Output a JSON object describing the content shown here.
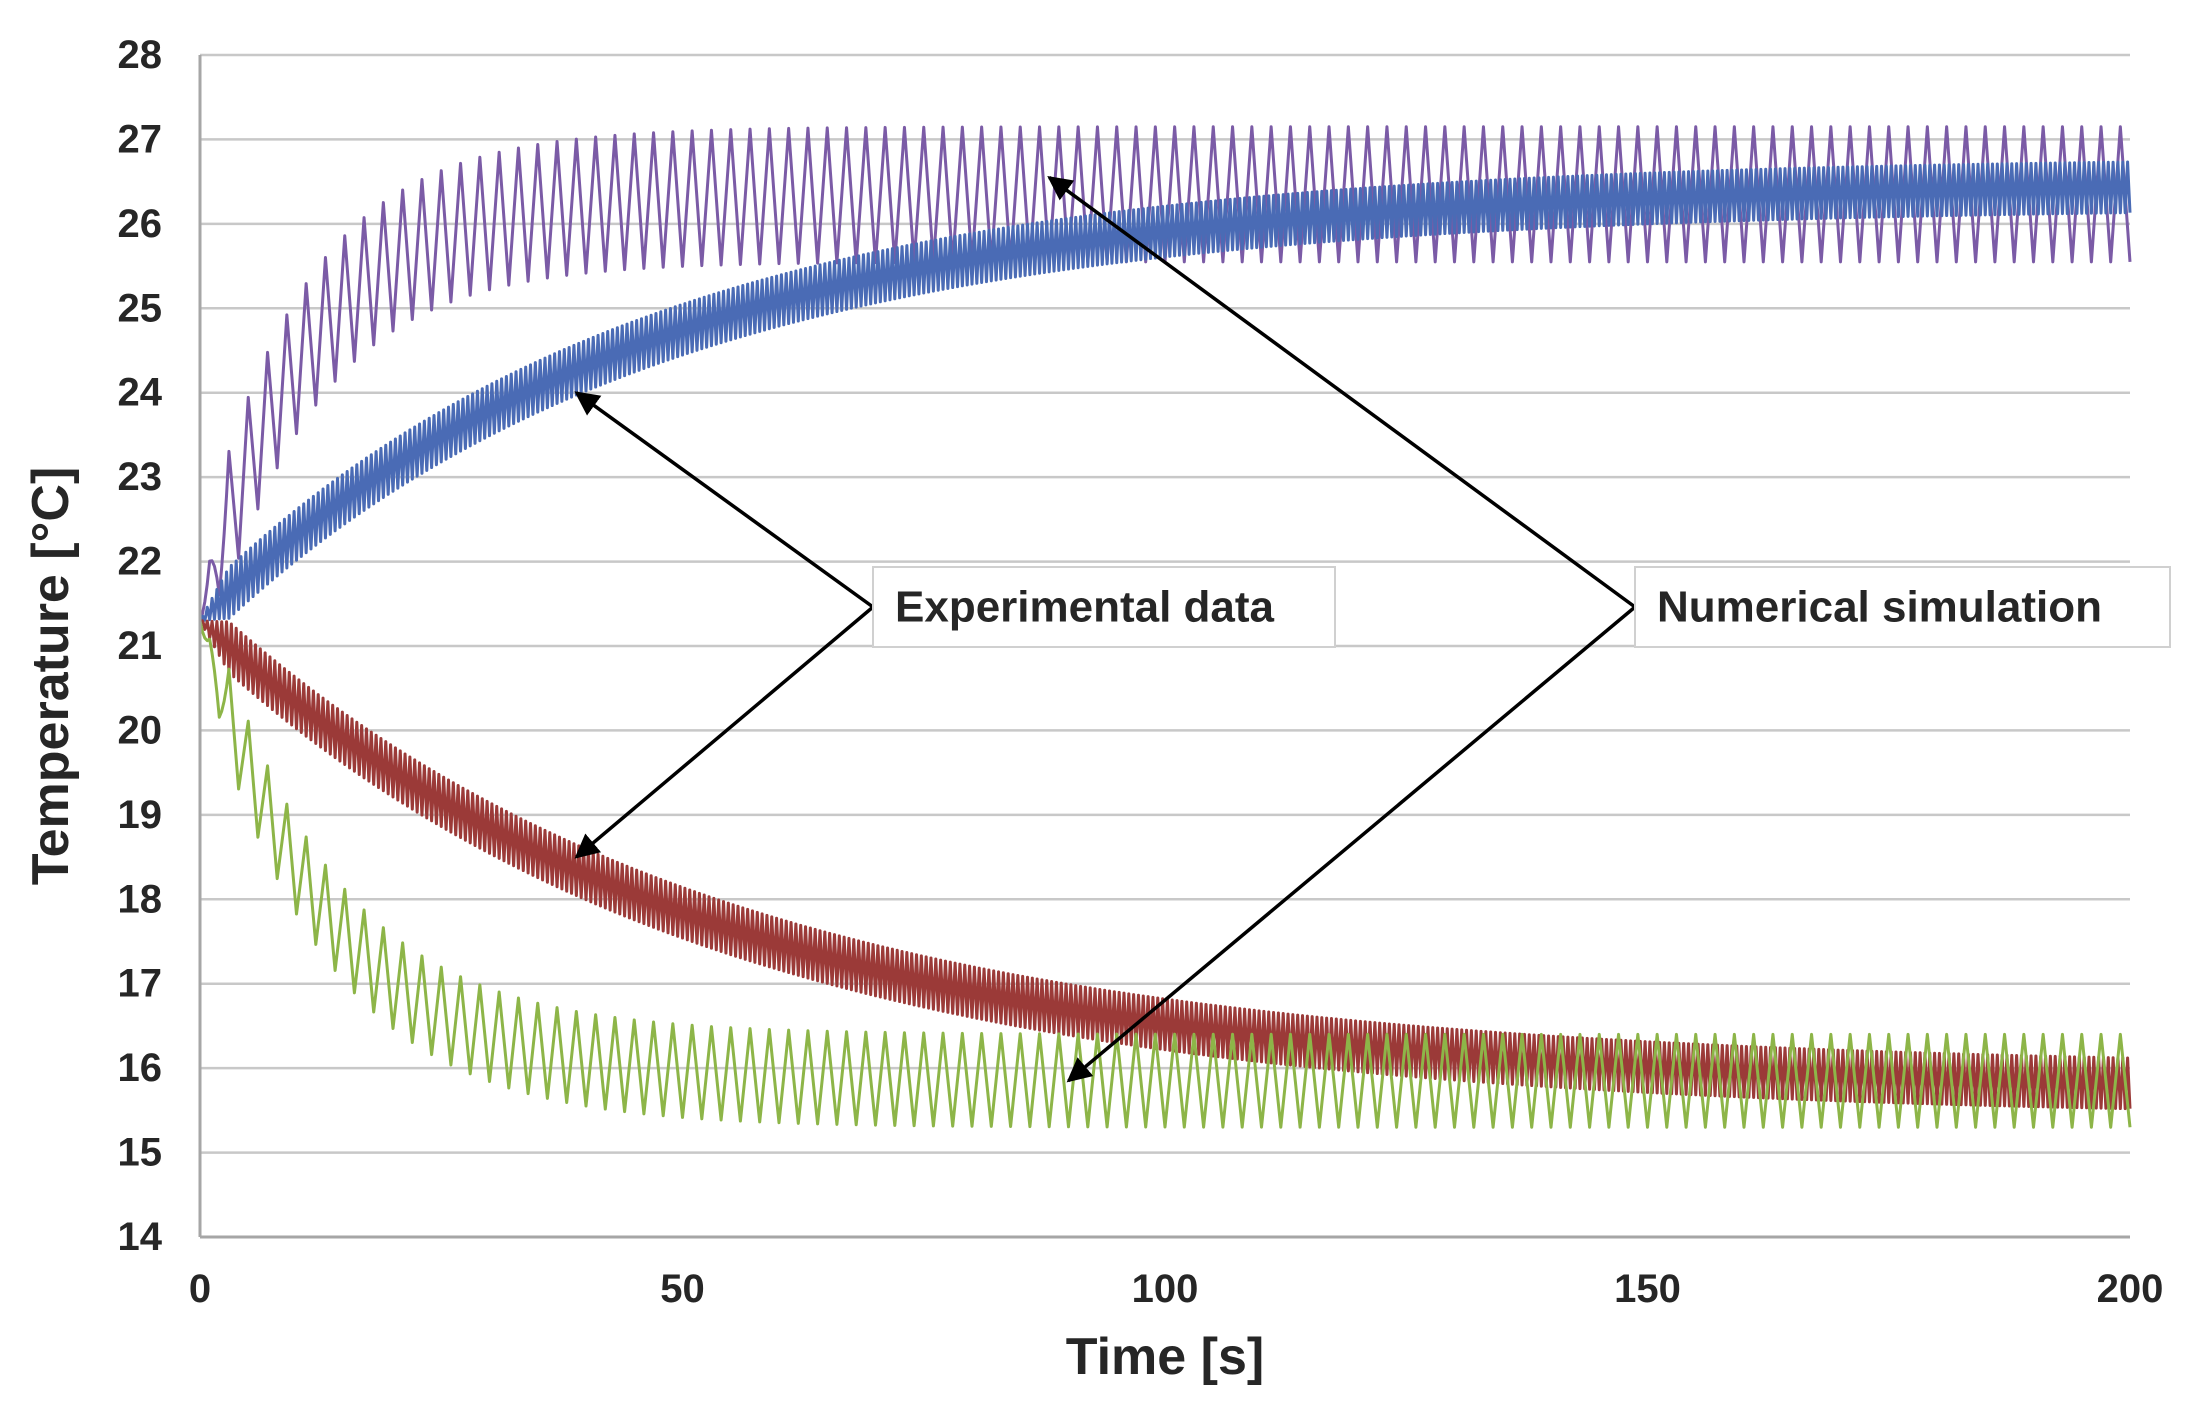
{
  "chart_data": {
    "type": "line",
    "title": "",
    "xlabel": "Time [s]",
    "ylabel": "Temperature [°C]",
    "xlim": [
      0,
      200
    ],
    "ylim": [
      14,
      28
    ],
    "xticks": [
      0,
      50,
      100,
      150,
      200
    ],
    "yticks": [
      14,
      15,
      16,
      17,
      18,
      19,
      20,
      21,
      22,
      23,
      24,
      25,
      26,
      27,
      28
    ],
    "grid": true,
    "legend": "none",
    "series": [
      {
        "name": "Numerical simulation (heating)",
        "color": "#7b5ba6",
        "start": 21.3,
        "asymptote": 26.35,
        "tau": 11,
        "oscillation_amplitude": 0.8,
        "oscillation_period_s": 2.0,
        "x": [
          0,
          5,
          10,
          20,
          30,
          50,
          75,
          100,
          150,
          200
        ],
        "values": [
          21.3,
          23.4,
          24.6,
          25.7,
          26.1,
          26.3,
          26.35,
          26.35,
          26.35,
          26.35
        ]
      },
      {
        "name": "Experimental data (heating)",
        "color": "#4a6bb5",
        "start": 21.3,
        "asymptote": 26.5,
        "tau": 46,
        "oscillation_amplitude": 0.3,
        "oscillation_period_s": 0.5,
        "x": [
          0,
          10,
          20,
          30,
          40,
          50,
          75,
          100,
          150,
          200
        ],
        "values": [
          21.3,
          22.4,
          23.2,
          23.8,
          24.2,
          24.6,
          25.2,
          25.6,
          26.1,
          26.4
        ]
      },
      {
        "name": "Experimental data (cooling)",
        "color": "#9b3a38",
        "start": 21.3,
        "asymptote": 15.7,
        "tau": 52,
        "oscillation_amplitude": 0.3,
        "oscillation_period_s": 0.5,
        "x": [
          0,
          10,
          20,
          30,
          40,
          50,
          75,
          100,
          150,
          200
        ],
        "values": [
          21.3,
          20.2,
          19.4,
          18.9,
          18.4,
          18.0,
          17.3,
          16.9,
          16.3,
          15.9
        ]
      },
      {
        "name": "Numerical simulation (cooling)",
        "color": "#8db548",
        "start": 21.3,
        "asymptote": 15.85,
        "tau": 13,
        "oscillation_amplitude": 0.55,
        "oscillation_period_s": 2.0,
        "x": [
          0,
          5,
          10,
          20,
          30,
          50,
          75,
          100,
          150,
          200
        ],
        "values": [
          21.3,
          19.8,
          18.8,
          17.3,
          16.6,
          16.0,
          15.9,
          15.85,
          15.85,
          15.85
        ]
      }
    ],
    "annotations": [
      {
        "text": "Experimental data",
        "arrows_to": [
          {
            "series": "Experimental data (heating)",
            "x": 39,
            "y": 24.0
          },
          {
            "series": "Experimental data (cooling)",
            "x": 39,
            "y": 18.5
          }
        ]
      },
      {
        "text": "Numerical simulation",
        "arrows_to": [
          {
            "series": "Numerical simulation (heating)",
            "x": 88,
            "y": 26.55
          },
          {
            "series": "Numerical simulation (cooling)",
            "x": 90,
            "y": 15.85
          }
        ]
      }
    ]
  }
}
